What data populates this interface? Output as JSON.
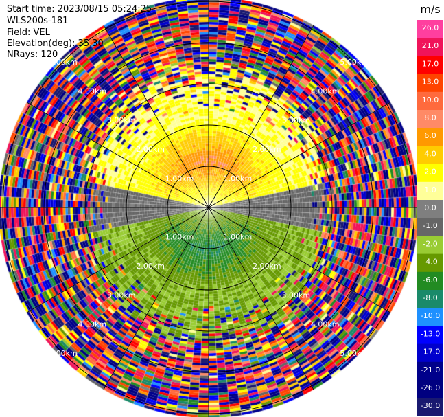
{
  "header": {
    "start_time": "Start time: 2023/08/15 05:24:25",
    "instrument": "WLS200s-181",
    "field": "Field: VEL",
    "elevation": "Elevation(deg): 35.30",
    "nrays": "NRays: 120"
  },
  "chart_data": {
    "type": "heatmap",
    "projection": "polar PPI",
    "field": "VEL",
    "units": "m/s",
    "nrays": 120,
    "elevation_deg": 35.3,
    "range_ring_labels": [
      "1.00km",
      "2.00km",
      "3.00km",
      "4.00km",
      "5.00km"
    ],
    "range_ring_values_km": [
      1,
      2,
      3,
      4,
      5
    ],
    "max_range_km": 5.1,
    "colorbar": {
      "label": "m/s",
      "tick_labels": [
        "26.0",
        "21.0",
        "17.0",
        "13.0",
        "10.0",
        "8.0",
        "6.0",
        "4.0",
        "2.0",
        "1.0",
        "0.0",
        "-1.0",
        "-2.0",
        "-4.0",
        "-6.0",
        "-8.0",
        "-10.0",
        "-13.0",
        "-17.0",
        "-21.0",
        "-26.0",
        "-30.0"
      ],
      "colors": [
        "#ff3f9f",
        "#f0145a",
        "#ff0000",
        "#ff4400",
        "#ff6a3d",
        "#ff8a66",
        "#ff9900",
        "#ffcc00",
        "#ffff00",
        "#ffff99",
        "#7f7f7f",
        "#666666",
        "#99cc33",
        "#669900",
        "#228b22",
        "#1a8a6a",
        "#1e90ff",
        "#0000ff",
        "#0000cd",
        "#00008b",
        "#000080",
        "#191970"
      ]
    },
    "field_pattern": {
      "near_north_dominant_m_s": [
        2.0,
        8.0
      ],
      "near_south_dominant_m_s": [
        -2.0,
        -6.0
      ],
      "east_west_band_m_s": [
        -1.0,
        0.0
      ]
    }
  }
}
